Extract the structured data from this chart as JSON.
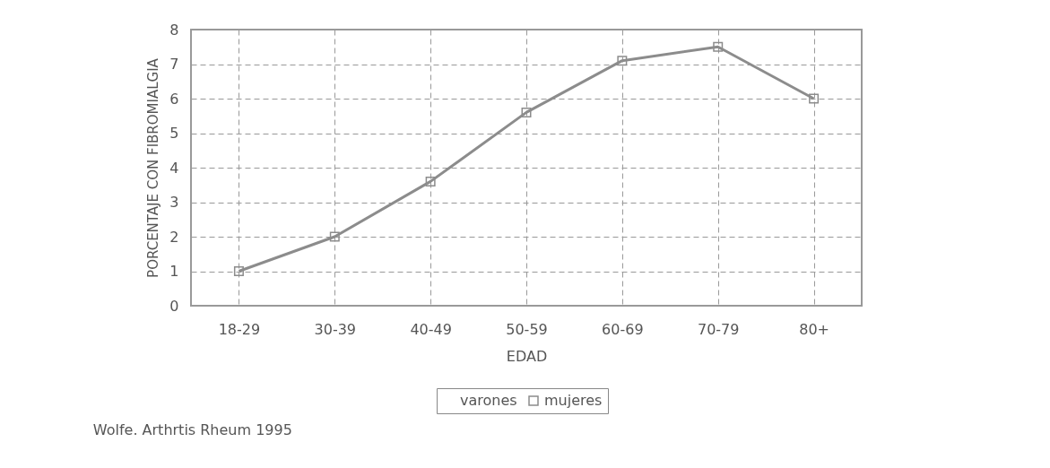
{
  "chart_data": {
    "type": "line",
    "xlabel": "EDAD",
    "ylabel": "PORCENTAJE CON FIBROMIALGIA",
    "categories": [
      "18-29",
      "30-39",
      "40-49",
      "50-59",
      "60-69",
      "70-79",
      "80+"
    ],
    "series": [
      {
        "name": "varones",
        "values": [
          null,
          null,
          null,
          null,
          null,
          null,
          null
        ]
      },
      {
        "name": "mujeres",
        "color": "#8c8c8c",
        "values": [
          1.0,
          2.0,
          3.6,
          5.6,
          7.1,
          7.5,
          6.0
        ]
      }
    ],
    "ylim": [
      0,
      8
    ],
    "yticks": [
      0,
      1,
      2,
      3,
      4,
      5,
      6,
      7,
      8
    ],
    "grid": true,
    "legend": "bottom",
    "marker": "square",
    "line_style": "solid",
    "annotations": [
      "Wolfe. Arthrtis Rheum 1995"
    ]
  }
}
